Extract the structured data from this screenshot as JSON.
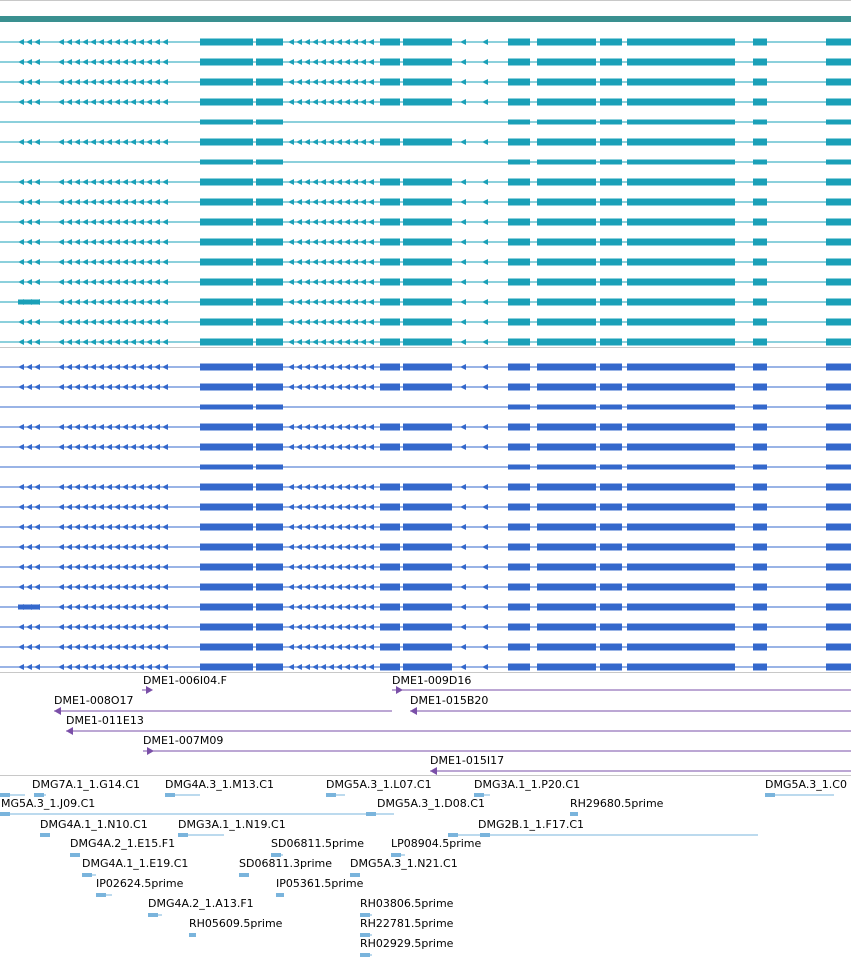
{
  "track_colors": {
    "gene_model": "#3a9090",
    "transcripts_a": "#1aa0b8",
    "transcripts_b": "#3468cc",
    "clones": "#7a4fa8",
    "ests": "#7ab4dc",
    "divider": "#c8c8c8"
  },
  "clone_labels": [
    "DME1-006I04.F",
    "DME1-009D16",
    "DME1-008O17",
    "DME1-015B20",
    "DME1-011E13",
    "DME1-007M09",
    "DME1-015I17"
  ],
  "est_labels": [
    "DMG7A.1_1.G14.C1",
    "DMG4A.3_1.M13.C1",
    "DMG5A.3_1.L07.C1",
    "DMG3A.1_1.P20.C1",
    "DMG5A.3_1.C0",
    "MG5A.3_1.J09.C1",
    "DMG5A.3_1.D08.C1",
    "RH29680.5prime",
    "DMG4A.1_1.N10.C1",
    "DMG3A.1_1.N19.C1",
    "DMG2B.1_1.F17.C1",
    "DMG4A.2_1.E15.F1",
    "SD06811.5prime",
    "LP08904.5prime",
    "DMG4A.1_1.E19.C1",
    "SD06811.3prime",
    "DMG5A.3_1.N21.C1",
    "IP02624.5prime",
    "IP05361.5prime",
    "DMG4A.2_1.A13.F1",
    "RH03806.5prime",
    "RH05609.5prime",
    "RH22781.5prime",
    "RH02929.5prime"
  ]
}
